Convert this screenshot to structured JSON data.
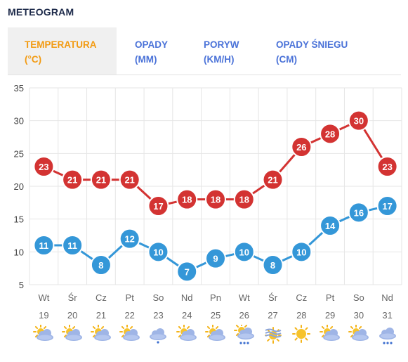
{
  "header": {
    "title": "METEOGRAM"
  },
  "tabs": [
    {
      "line1": "TEMPERATURA",
      "line2": "(°C)",
      "active": true
    },
    {
      "line1": "OPADY",
      "line2": "(MM)",
      "active": false
    },
    {
      "line1": "PORYW",
      "line2": "(KM/H)",
      "active": false
    },
    {
      "line1": "OPADY ŚNIEGU",
      "line2": "(CM)",
      "active": false
    }
  ],
  "colors": {
    "max_series": "#d33332",
    "min_series": "#3497d8",
    "accent": "#f29a11",
    "tab_text": "#4a72d8"
  },
  "chart_data": {
    "type": "line",
    "ylim": [
      5,
      35
    ],
    "yticks": [
      5,
      10,
      15,
      20,
      25,
      30,
      35
    ],
    "grid": true,
    "categories": [
      "Wt 19",
      "Śr 20",
      "Cz 21",
      "Pt 22",
      "So 23",
      "Nd 24",
      "Pn 25",
      "Wt 26",
      "Śr 27",
      "Cz 28",
      "Pt 29",
      "So 30",
      "Nd 31"
    ],
    "days": [
      "Wt",
      "Śr",
      "Cz",
      "Pt",
      "So",
      "Nd",
      "Pn",
      "Wt",
      "Śr",
      "Cz",
      "Pt",
      "So",
      "Nd"
    ],
    "dates": [
      "19",
      "20",
      "21",
      "22",
      "23",
      "24",
      "25",
      "26",
      "27",
      "28",
      "29",
      "30",
      "31"
    ],
    "series": [
      {
        "values": [
          23,
          21,
          21,
          21,
          17,
          18,
          18,
          18,
          21,
          26,
          28,
          30,
          23
        ],
        "color": "#d33332"
      },
      {
        "values": [
          11,
          11,
          8,
          12,
          10,
          7,
          9,
          10,
          8,
          10,
          14,
          16,
          17
        ],
        "color": "#3497d8"
      }
    ]
  },
  "weather_icons": [
    "sun-cloud-icon",
    "sun-cloud-icon",
    "sun-cloud-icon",
    "sun-cloud-icon",
    "cloud-drizzle-icon",
    "sun-cloud-icon",
    "sun-cloud-icon",
    "sun-cloud-rain-icon",
    "fog-sun-icon",
    "sun-icon",
    "sun-cloud-icon",
    "sun-cloud-icon",
    "cloud-rain-icon"
  ]
}
